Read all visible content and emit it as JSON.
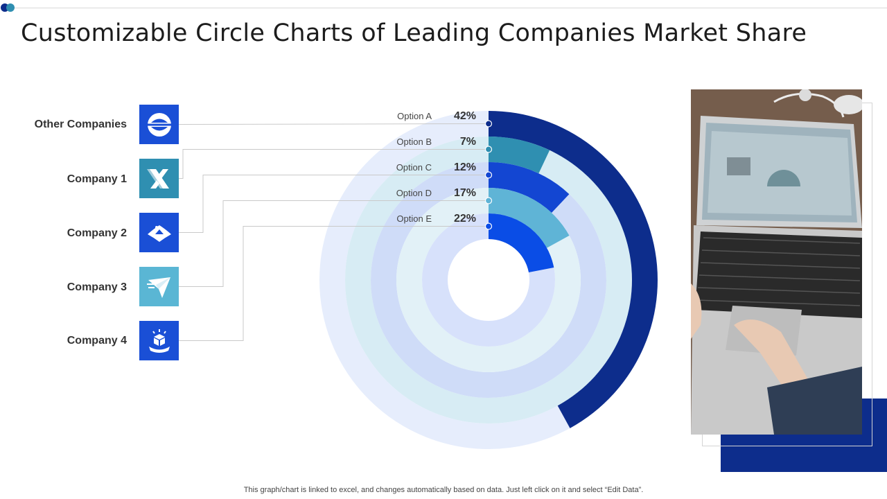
{
  "title": "Customizable Circle Charts of Leading Companies Market Share",
  "footer": "This graph/chart is linked to excel,  and changes automatically based on data. Just left click on it and select “Edit Data”.",
  "colors": {
    "accent_dark": "#0d2d8c",
    "accent_teal": "#2f8fb1",
    "logo_blue": "#1a4fd6",
    "logo_teal": "#2f8fb1",
    "logo_light": "#5ab6d4"
  },
  "companies": [
    {
      "name": "Other Companies",
      "icon": "globe-icon"
    },
    {
      "name": "Company 1",
      "icon": "x-logo-icon"
    },
    {
      "name": "Company 2",
      "icon": "bird-logo-icon"
    },
    {
      "name": "Company 3",
      "icon": "paper-plane-icon"
    },
    {
      "name": "Company 4",
      "icon": "box-ribbon-icon"
    }
  ],
  "chart_data": {
    "type": "radial-bar",
    "title": "",
    "categories": [
      "Option A",
      "Option B",
      "Option C",
      "Option D",
      "Option E"
    ],
    "values": [
      42,
      7,
      12,
      17,
      22
    ],
    "value_labels": [
      "42%",
      "7%",
      "12%",
      "17%",
      "22%"
    ],
    "unit": "%",
    "max": 100,
    "series_colors": [
      "#0d2d8c",
      "#2f8fb1",
      "#1346d2",
      "#5fb4d6",
      "#0a4de6"
    ],
    "track_colors": [
      "#e6edfc",
      "#d7ecf4",
      "#cfdcf8",
      "#e2f1f7",
      "#d7e1fb"
    ]
  }
}
